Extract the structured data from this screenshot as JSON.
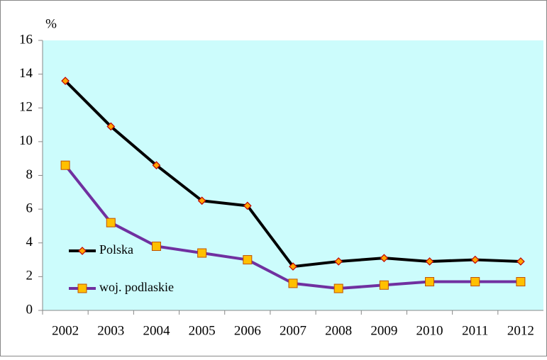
{
  "chart_data": {
    "type": "line",
    "ylabel": "%",
    "categories": [
      "2002",
      "2003",
      "2004",
      "2005",
      "2006",
      "2007",
      "2008",
      "2009",
      "2010",
      "2011",
      "2012"
    ],
    "series": [
      {
        "name": "Polska",
        "color": "#000000",
        "marker": "diamond",
        "marker_color": "#ffa500",
        "marker_edge": "#c00000",
        "values": [
          13.6,
          10.9,
          8.6,
          6.5,
          6.2,
          2.6,
          2.9,
          3.1,
          2.9,
          3.0,
          2.9
        ]
      },
      {
        "name": "woj. podlaskie",
        "color": "#7030a0",
        "marker": "square",
        "marker_color": "#ffc000",
        "marker_edge": "#c05000",
        "values": [
          8.6,
          5.2,
          3.8,
          3.4,
          3.0,
          1.6,
          1.3,
          1.5,
          1.7,
          1.7,
          1.7
        ]
      }
    ],
    "ylim": [
      0,
      16
    ],
    "yticks": [
      0,
      2,
      4,
      6,
      8,
      10,
      12,
      14,
      16
    ],
    "plot_background": "#ccfcfc",
    "legend": "left"
  }
}
